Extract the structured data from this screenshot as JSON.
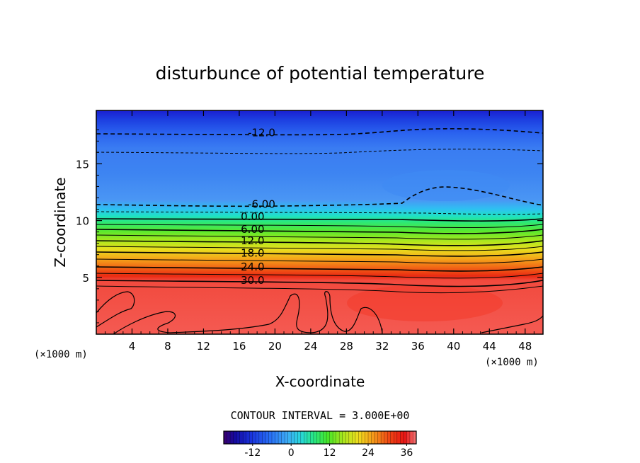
{
  "chart_data": {
    "type": "heatmap",
    "title": "disturbunce of potential temperature",
    "xlabel": "X-coordinate",
    "ylabel": "Z-coordinate",
    "x_unit_left": "(×1000 m)",
    "x_unit_right": "(×1000 m)",
    "xlim": [
      0,
      50
    ],
    "ylim": [
      0,
      19.7
    ],
    "x_ticks": [
      4,
      8,
      12,
      16,
      20,
      24,
      28,
      32,
      36,
      40,
      44,
      48
    ],
    "y_ticks": [
      5,
      10,
      15
    ],
    "contour_interval_label": "CONTOUR INTERVAL = 3.000E+00",
    "contour_interval": 3.0,
    "contour_labels": [
      {
        "text": "-12.0",
        "x": 18.5,
        "y": 17.8,
        "dashed": true
      },
      {
        "text": "-6.00",
        "x": 18.5,
        "y": 11.5,
        "dashed": true
      },
      {
        "text": "0.00",
        "x": 17.5,
        "y": 10.4,
        "dashed": false
      },
      {
        "text": "6.00",
        "x": 17.5,
        "y": 9.3,
        "dashed": false
      },
      {
        "text": "12.0",
        "x": 17.5,
        "y": 8.3,
        "dashed": false
      },
      {
        "text": "18.0",
        "x": 17.5,
        "y": 7.2,
        "dashed": false
      },
      {
        "text": "24.0",
        "x": 17.5,
        "y": 6.0,
        "dashed": false
      },
      {
        "text": "30.0",
        "x": 17.5,
        "y": 4.8,
        "dashed": false
      }
    ],
    "colorbar": {
      "min": -21,
      "max": 39,
      "ticks": [
        -12,
        0,
        12,
        24,
        36
      ],
      "tick_labels": [
        "-12",
        "0",
        "12",
        "24",
        "36"
      ]
    }
  }
}
